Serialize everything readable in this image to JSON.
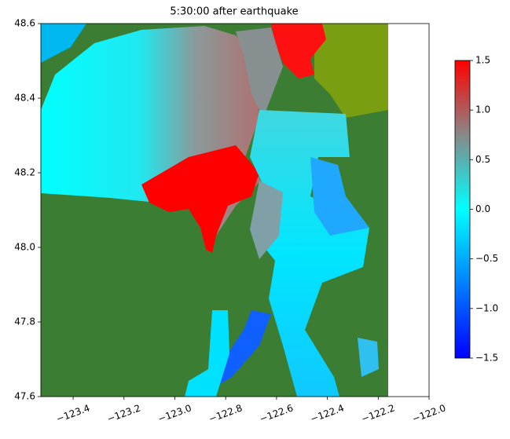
{
  "chart_data": {
    "type": "map",
    "title": "5:30:00 after earthquake",
    "xlim": [
      -123.527,
      -122.0
    ],
    "ylim": [
      47.6,
      48.6
    ],
    "xticks": [
      {
        "value": -123.4,
        "label": "−123.4"
      },
      {
        "value": -123.2,
        "label": "−123.2"
      },
      {
        "value": -123.0,
        "label": "−123.0"
      },
      {
        "value": -122.8,
        "label": "−122.8"
      },
      {
        "value": -122.6,
        "label": "−122.6"
      },
      {
        "value": -122.4,
        "label": "−122.4"
      },
      {
        "value": -122.2,
        "label": "−122.2"
      },
      {
        "value": -122.0,
        "label": "−122.0"
      }
    ],
    "yticks": [
      {
        "value": 47.6,
        "label": "47.6"
      },
      {
        "value": 47.8,
        "label": "47.8"
      },
      {
        "value": 48.0,
        "label": "48.0"
      },
      {
        "value": 48.2,
        "label": "48.2"
      },
      {
        "value": 48.4,
        "label": "48.4"
      },
      {
        "value": 48.6,
        "label": "48.6"
      }
    ],
    "colorbar": {
      "clim": [
        -1.5,
        1.5
      ],
      "ticks": [
        {
          "value": -1.5,
          "label": "−1.5"
        },
        {
          "value": -1.0,
          "label": "−1.0"
        },
        {
          "value": -0.5,
          "label": "−0.5"
        },
        {
          "value": 0.0,
          "label": "0.0"
        },
        {
          "value": 0.5,
          "label": "0.5"
        },
        {
          "value": 1.0,
          "label": "1.0"
        },
        {
          "value": 1.5,
          "label": "1.5"
        }
      ],
      "colormap": [
        {
          "value": -1.5,
          "color": "#0000ff"
        },
        {
          "value": 0.0,
          "color": "#00ffff"
        },
        {
          "value": 0.75,
          "color": "#888888"
        },
        {
          "value": 1.5,
          "color": "#ff0000"
        }
      ]
    }
  }
}
